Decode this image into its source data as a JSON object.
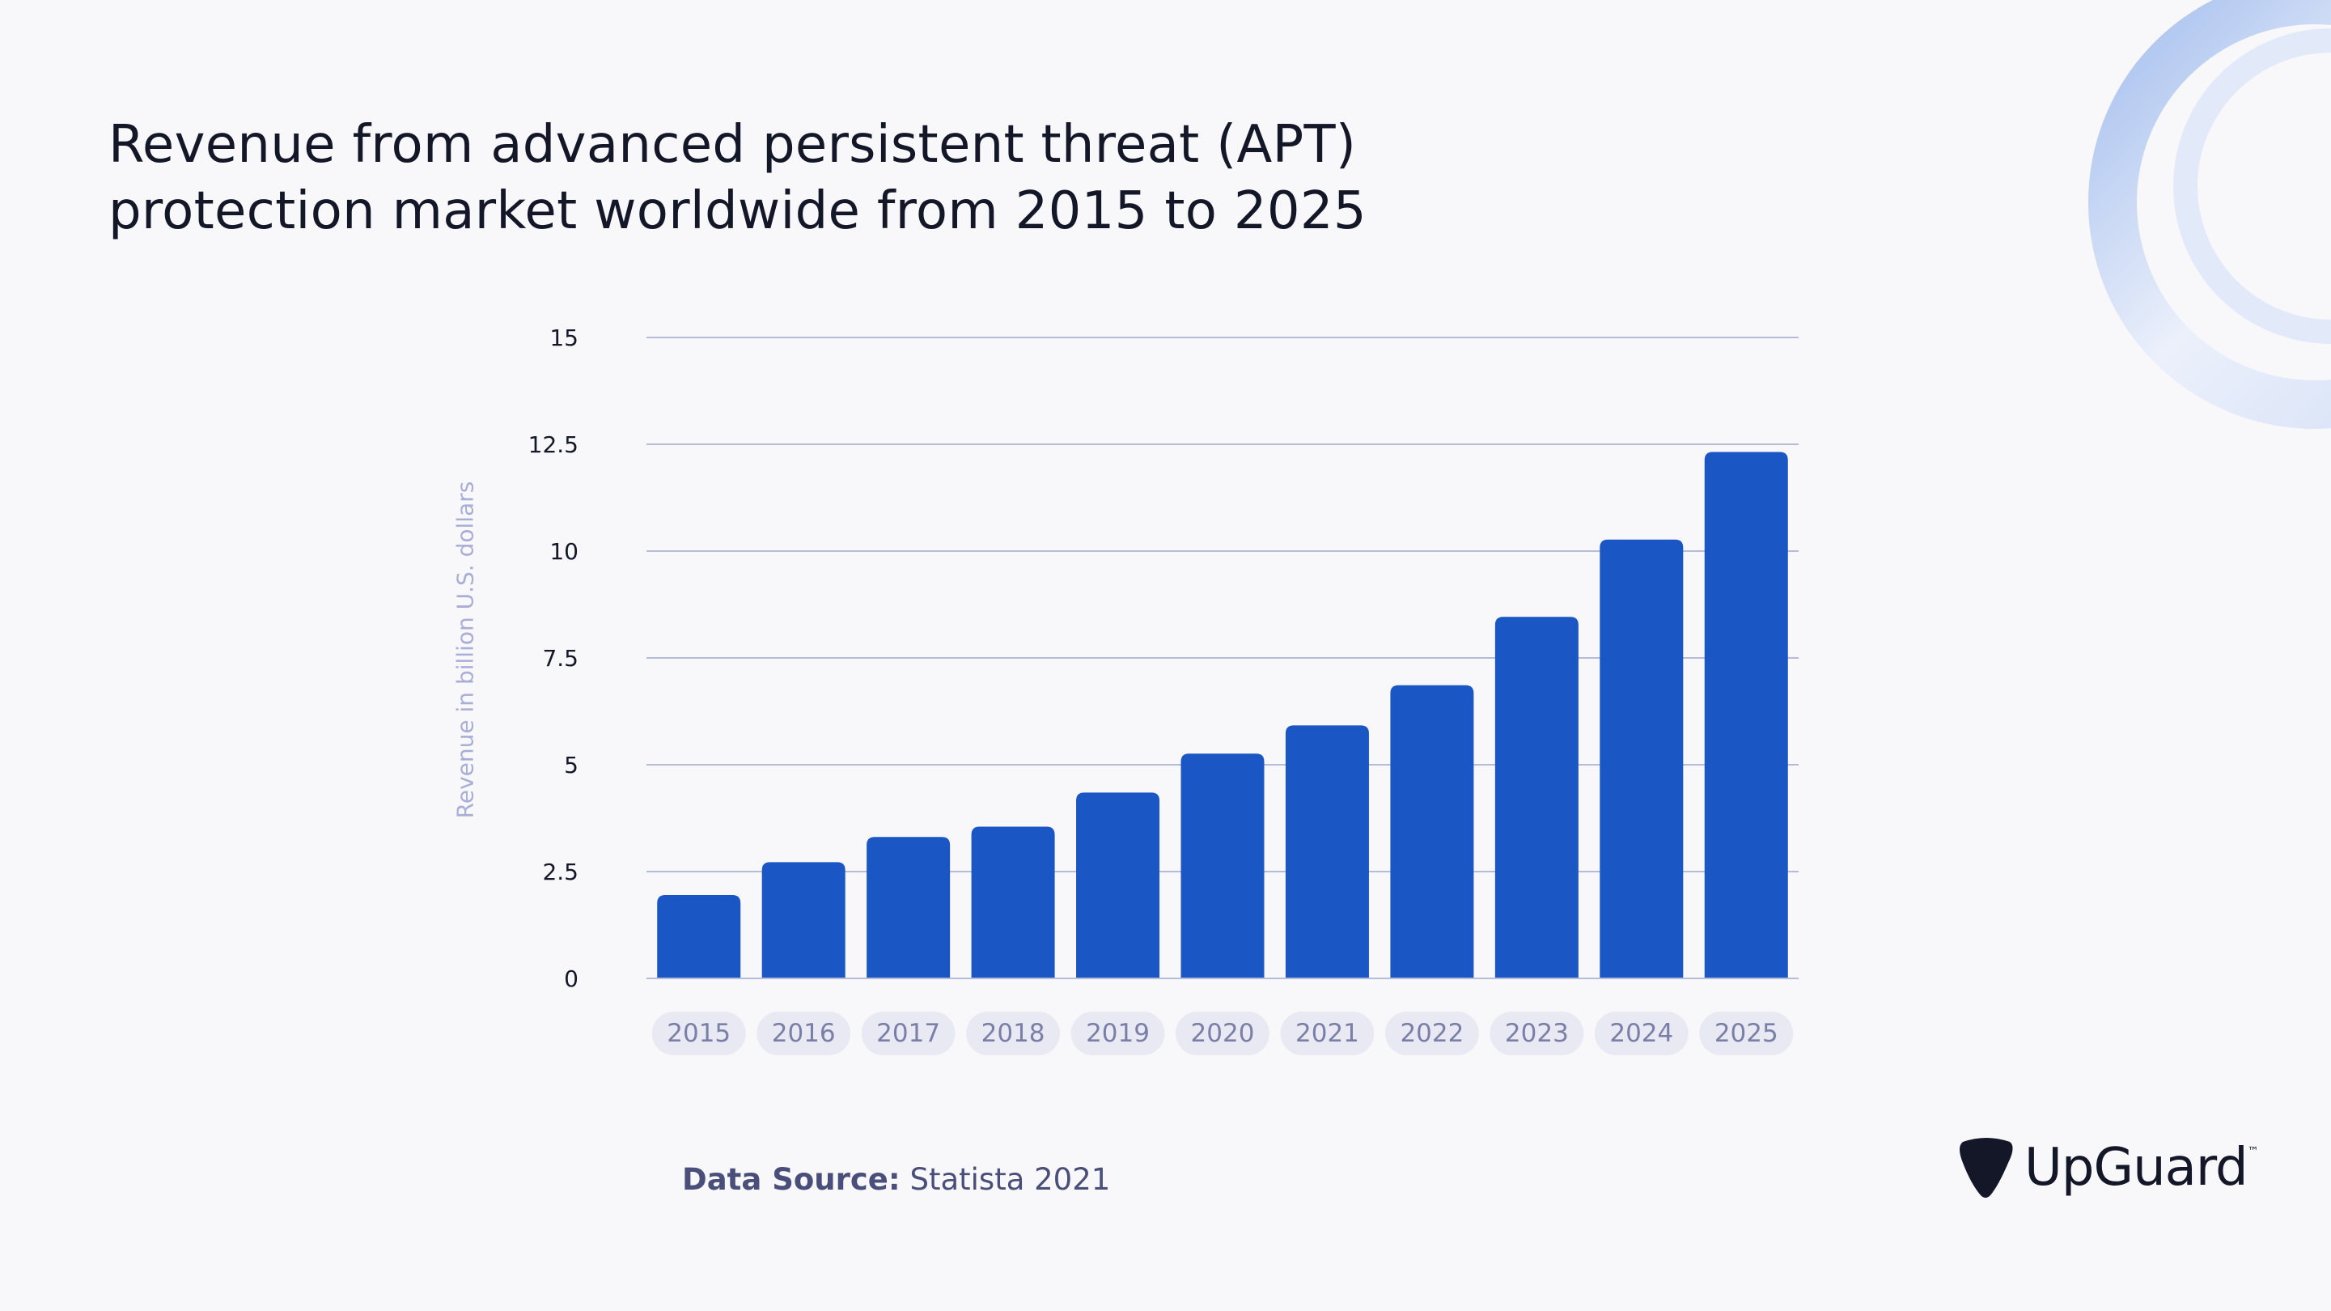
{
  "chart_data": {
    "type": "bar",
    "title": "Revenue from advanced persistent threat (APT) protection market worldwide from 2015 to 2025",
    "title_lines": [
      "Revenue from advanced persistent threat (APT)",
      "protection market worldwide from 2015 to 2025"
    ],
    "xlabel": "",
    "ylabel": "Revenue in billion U.S. dollars",
    "categories": [
      "2015",
      "2016",
      "2017",
      "2018",
      "2019",
      "2020",
      "2021",
      "2022",
      "2023",
      "2024",
      "2025"
    ],
    "values": [
      1.95,
      2.72,
      3.31,
      3.55,
      4.35,
      5.26,
      5.92,
      6.86,
      8.46,
      10.27,
      12.32
    ],
    "ylim": [
      0,
      15
    ],
    "yticks": [
      "0",
      "2.5",
      "5",
      "7.5",
      "10",
      "12.5",
      "15"
    ],
    "grid": true,
    "legend": "none",
    "colors": {
      "bar": "#1a56c4",
      "grid": "#b8bbd8",
      "tick_pill": "#e9e9f3",
      "tick_text": "#7a7fa8"
    }
  },
  "source": {
    "label": "Data Source:",
    "value": "Statista 2021"
  },
  "logo": {
    "text": "UpGuard",
    "tm": "™"
  }
}
